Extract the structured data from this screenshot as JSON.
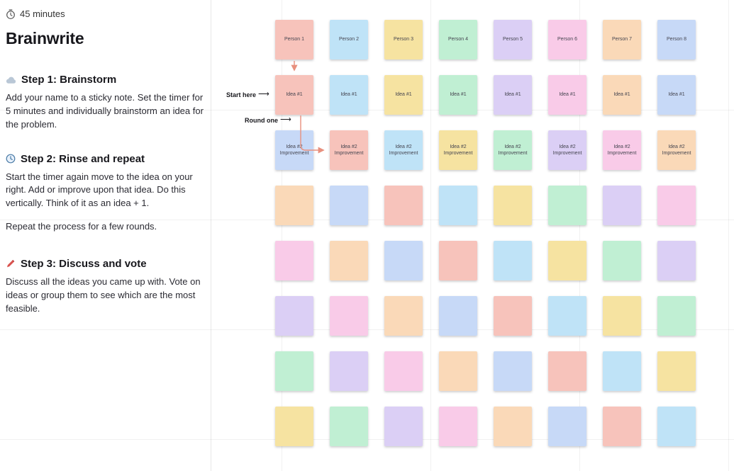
{
  "panel": {
    "duration": "45 minutes",
    "title": "Brainwrite",
    "steps": [
      {
        "icon": "cloud-icon",
        "heading": "Step 1: Brainstorm",
        "body": [
          "Add your name to a sticky note. Set the timer for 5 minutes and individually brainstorm an idea for the problem."
        ]
      },
      {
        "icon": "clock-icon",
        "heading": "Step 2: Rinse and repeat",
        "body": [
          "Start the timer again move to the idea on your right. Add or improve upon that idea. Do this vertically. Think of it as an idea + 1.",
          "Repeat the process for a few rounds."
        ]
      },
      {
        "icon": "pencil-icon",
        "heading": "Step 3: Discuss and vote",
        "body": [
          "Discuss all the ideas you came up with. Vote on ideas or group them to see which are the most feasible."
        ]
      }
    ]
  },
  "board": {
    "annotations": {
      "start_here": "Start here",
      "round_one": "Round one",
      "arrow": "⟶"
    },
    "connector_color": "#E8907E",
    "palette": {
      "salmon": "#F7C3BB",
      "lightblue": "#BFE3F7",
      "yellow": "#F6E3A1",
      "mint": "#C0EFD3",
      "lavender": "#DBCFF5",
      "pink": "#F9CBE8",
      "peach": "#FAD9B8",
      "periwinkle": "#C7D9F7"
    },
    "rows": [
      {
        "cells": [
          {
            "label": "Person 1",
            "color": "#F7C3BB"
          },
          {
            "label": "Person 2",
            "color": "#BFE3F7"
          },
          {
            "label": "Person 3",
            "color": "#F6E3A1"
          },
          {
            "label": "Person 4",
            "color": "#C0EFD3"
          },
          {
            "label": "Person 5",
            "color": "#DBCFF5"
          },
          {
            "label": "Person 6",
            "color": "#F9CBE8"
          },
          {
            "label": "Person 7",
            "color": "#FAD9B8"
          },
          {
            "label": "Person 8",
            "color": "#C7D9F7"
          }
        ]
      },
      {
        "cells": [
          {
            "label": "Idea #1",
            "color": "#F7C3BB"
          },
          {
            "label": "Idea #1",
            "color": "#BFE3F7"
          },
          {
            "label": "Idea #1",
            "color": "#F6E3A1"
          },
          {
            "label": "Idea #1",
            "color": "#C0EFD3"
          },
          {
            "label": "Idea #1",
            "color": "#DBCFF5"
          },
          {
            "label": "Idea #1",
            "color": "#F9CBE8"
          },
          {
            "label": "Idea #1",
            "color": "#FAD9B8"
          },
          {
            "label": "Idea #1",
            "color": "#C7D9F7"
          }
        ]
      },
      {
        "cells": [
          {
            "label": "Idea #2 Improvement",
            "color": "#C7D9F7"
          },
          {
            "label": "Idea #2 Improvement",
            "color": "#F7C3BB"
          },
          {
            "label": "Idea #2 Improvement",
            "color": "#BFE3F7"
          },
          {
            "label": "Idea #2 Improvement",
            "color": "#F6E3A1"
          },
          {
            "label": "Idea #2 Improvement",
            "color": "#C0EFD3"
          },
          {
            "label": "Idea #2 Improvement",
            "color": "#DBCFF5"
          },
          {
            "label": "Idea #2 Improvement",
            "color": "#F9CBE8"
          },
          {
            "label": "Idea #2 Improvement",
            "color": "#FAD9B8"
          }
        ]
      },
      {
        "cells": [
          {
            "label": "",
            "color": "#FAD9B8"
          },
          {
            "label": "",
            "color": "#C7D9F7"
          },
          {
            "label": "",
            "color": "#F7C3BB"
          },
          {
            "label": "",
            "color": "#BFE3F7"
          },
          {
            "label": "",
            "color": "#F6E3A1"
          },
          {
            "label": "",
            "color": "#C0EFD3"
          },
          {
            "label": "",
            "color": "#DBCFF5"
          },
          {
            "label": "",
            "color": "#F9CBE8"
          }
        ]
      },
      {
        "cells": [
          {
            "label": "",
            "color": "#F9CBE8"
          },
          {
            "label": "",
            "color": "#FAD9B8"
          },
          {
            "label": "",
            "color": "#C7D9F7"
          },
          {
            "label": "",
            "color": "#F7C3BB"
          },
          {
            "label": "",
            "color": "#BFE3F7"
          },
          {
            "label": "",
            "color": "#F6E3A1"
          },
          {
            "label": "",
            "color": "#C0EFD3"
          },
          {
            "label": "",
            "color": "#DBCFF5"
          }
        ]
      },
      {
        "cells": [
          {
            "label": "",
            "color": "#DBCFF5"
          },
          {
            "label": "",
            "color": "#F9CBE8"
          },
          {
            "label": "",
            "color": "#FAD9B8"
          },
          {
            "label": "",
            "color": "#C7D9F7"
          },
          {
            "label": "",
            "color": "#F7C3BB"
          },
          {
            "label": "",
            "color": "#BFE3F7"
          },
          {
            "label": "",
            "color": "#F6E3A1"
          },
          {
            "label": "",
            "color": "#C0EFD3"
          }
        ]
      },
      {
        "cells": [
          {
            "label": "",
            "color": "#C0EFD3"
          },
          {
            "label": "",
            "color": "#DBCFF5"
          },
          {
            "label": "",
            "color": "#F9CBE8"
          },
          {
            "label": "",
            "color": "#FAD9B8"
          },
          {
            "label": "",
            "color": "#C7D9F7"
          },
          {
            "label": "",
            "color": "#F7C3BB"
          },
          {
            "label": "",
            "color": "#BFE3F7"
          },
          {
            "label": "",
            "color": "#F6E3A1"
          }
        ]
      },
      {
        "cells": [
          {
            "label": "",
            "color": "#F6E3A1"
          },
          {
            "label": "",
            "color": "#C0EFD3"
          },
          {
            "label": "",
            "color": "#DBCFF5"
          },
          {
            "label": "",
            "color": "#F9CBE8"
          },
          {
            "label": "",
            "color": "#FAD9B8"
          },
          {
            "label": "",
            "color": "#C7D9F7"
          },
          {
            "label": "",
            "color": "#F7C3BB"
          },
          {
            "label": "",
            "color": "#BFE3F7"
          }
        ]
      }
    ]
  }
}
